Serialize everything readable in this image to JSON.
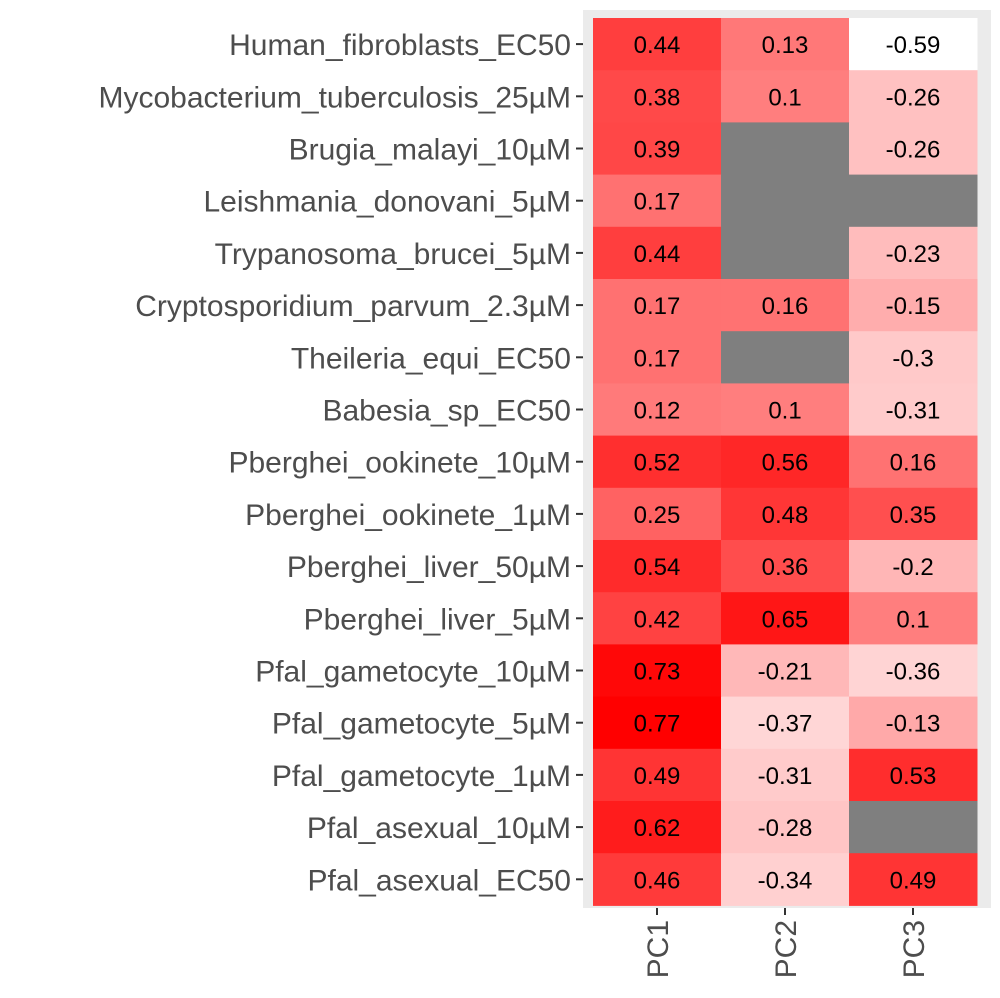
{
  "chart_data": {
    "type": "heatmap",
    "rows": [
      "Human_fibroblasts_EC50",
      "Mycobacterium_tuberculosis_25µM",
      "Brugia_malayi_10µM",
      "Leishmania_donovani_5µM",
      "Trypanosoma_brucei_5µM",
      "Cryptosporidium_parvum_2.3µM",
      "Theileria_equi_EC50",
      "Babesia_sp_EC50",
      "Pberghei_ookinete_10µM",
      "Pberghei_ookinete_1µM",
      "Pberghei_liver_50µM",
      "Pberghei_liver_5µM",
      "Pfal_gametocyte_10µM",
      "Pfal_gametocyte_5µM",
      "Pfal_gametocyte_1µM",
      "Pfal_asexual_10µM",
      "Pfal_asexual_EC50"
    ],
    "columns": [
      "PC1",
      "PC2",
      "PC3"
    ],
    "values": [
      [
        0.44,
        0.13,
        -0.59
      ],
      [
        0.38,
        0.1,
        -0.26
      ],
      [
        0.39,
        null,
        -0.26
      ],
      [
        0.17,
        null,
        null
      ],
      [
        0.44,
        null,
        -0.23
      ],
      [
        0.17,
        0.16,
        -0.15
      ],
      [
        0.17,
        null,
        -0.3
      ],
      [
        0.12,
        0.1,
        -0.31
      ],
      [
        0.52,
        0.56,
        0.16
      ],
      [
        0.25,
        0.48,
        0.35
      ],
      [
        0.54,
        0.36,
        -0.2
      ],
      [
        0.42,
        0.65,
        0.1
      ],
      [
        0.73,
        -0.21,
        -0.36
      ],
      [
        0.77,
        -0.37,
        -0.13
      ],
      [
        0.49,
        -0.31,
        0.53
      ],
      [
        0.62,
        -0.28,
        null
      ],
      [
        0.46,
        -0.34,
        0.49
      ]
    ],
    "color_low": "#ffffff",
    "color_high": "#ff0000",
    "na_color": "#7f7f7f",
    "value_range": [
      -0.59,
      0.77
    ],
    "panel_background": "#ebebeb"
  }
}
